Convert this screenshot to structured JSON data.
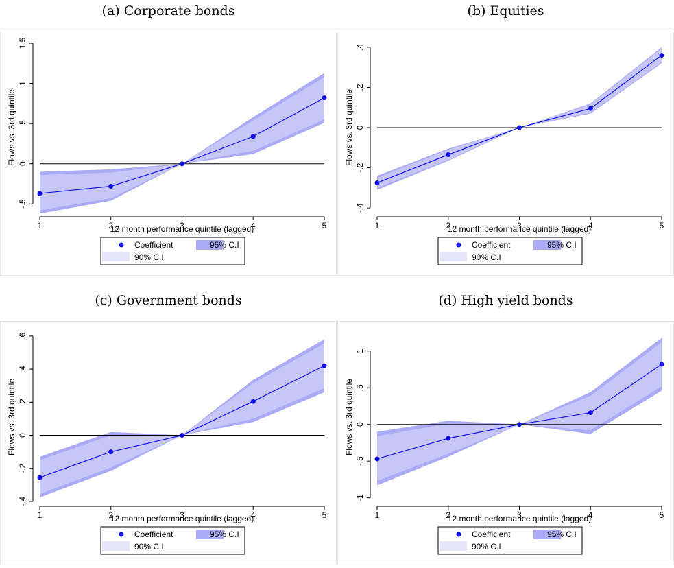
{
  "colors": {
    "line": "#1010e6",
    "ci95": "#aaaaf5",
    "ci90": "#c6c6f8",
    "zero": "#000000",
    "legend_ci90": "#e6e6fb"
  },
  "chart_data": [
    {
      "type": "line",
      "title": "(a) Corporate bonds",
      "xlabel": "12 month performance quintile (lagged)",
      "ylabel": "Flows vs. 3rd quintile",
      "x": [
        1,
        2,
        3,
        4,
        5
      ],
      "xticks": [
        "1",
        "2",
        "3",
        "4",
        "5"
      ],
      "yticks": [
        -0.5,
        0,
        0.5,
        1,
        1.5
      ],
      "ytick_labels": [
        "-.5",
        "0",
        ".5",
        "1",
        "1.5"
      ],
      "ylim": [
        -0.6,
        1.5
      ],
      "series": [
        {
          "name": "Coefficient",
          "values": [
            -0.37,
            -0.28,
            0.0,
            0.34,
            0.82
          ]
        },
        {
          "name": "95% C.I",
          "lower": [
            -0.62,
            -0.46,
            0.0,
            0.12,
            0.51
          ],
          "upper": [
            -0.1,
            -0.07,
            0.0,
            0.58,
            1.13
          ]
        },
        {
          "name": "90% C.I",
          "lower": [
            -0.58,
            -0.43,
            0.0,
            0.16,
            0.55
          ],
          "upper": [
            -0.14,
            -0.11,
            0.0,
            0.54,
            1.08
          ]
        }
      ],
      "legend": [
        "Coefficient",
        "95% C.I",
        "90% C.I"
      ],
      "grid": false,
      "legend_position": "bottom"
    },
    {
      "type": "line",
      "title": "(b) Equities",
      "xlabel": "12 month performance quintile (lagged)",
      "ylabel": "Flows vs. 3rd quintile",
      "x": [
        1,
        2,
        3,
        4,
        5
      ],
      "xticks": [
        "1",
        "2",
        "3",
        "4",
        "5"
      ],
      "yticks": [
        -0.4,
        -0.2,
        0,
        0.2,
        0.4
      ],
      "ytick_labels": [
        "-.4",
        "-.2",
        "0",
        ".2",
        ".4"
      ],
      "ylim": [
        -0.42,
        0.42
      ],
      "series": [
        {
          "name": "Coefficient",
          "values": [
            -0.275,
            -0.135,
            0.0,
            0.095,
            0.36
          ]
        },
        {
          "name": "95% C.I",
          "lower": [
            -0.31,
            -0.165,
            0.0,
            0.07,
            0.32
          ],
          "upper": [
            -0.24,
            -0.105,
            0.0,
            0.12,
            0.4
          ]
        },
        {
          "name": "90% C.I",
          "lower": [
            -0.3,
            -0.16,
            0.0,
            0.075,
            0.325
          ],
          "upper": [
            -0.25,
            -0.11,
            0.0,
            0.115,
            0.395
          ]
        }
      ],
      "legend": [
        "Coefficient",
        "95% C.I",
        "90% C.I"
      ],
      "grid": false,
      "legend_position": "bottom"
    },
    {
      "type": "line",
      "title": "(c) Government bonds",
      "xlabel": "12 month performance quintile (lagged)",
      "ylabel": "Flows vs. 3rd quintile",
      "x": [
        1,
        2,
        3,
        4,
        5
      ],
      "xticks": [
        "1",
        "2",
        "3",
        "4",
        "5"
      ],
      "yticks": [
        -0.4,
        -0.2,
        0,
        0.2,
        0.4,
        0.6
      ],
      "ytick_labels": [
        "-.4",
        "-.2",
        "0",
        ".2",
        ".4",
        ".6"
      ],
      "ylim": [
        -0.4,
        0.62
      ],
      "series": [
        {
          "name": "Coefficient",
          "values": [
            -0.255,
            -0.1,
            0.0,
            0.205,
            0.42
          ]
        },
        {
          "name": "95% C.I",
          "lower": [
            -0.375,
            -0.215,
            0.0,
            0.08,
            0.26
          ],
          "upper": [
            -0.13,
            0.02,
            0.0,
            0.335,
            0.58
          ]
        },
        {
          "name": "90% C.I",
          "lower": [
            -0.355,
            -0.195,
            0.0,
            0.1,
            0.285
          ],
          "upper": [
            -0.15,
            0.0,
            0.0,
            0.315,
            0.555
          ]
        }
      ],
      "legend": [
        "Coefficient",
        "95% C.I",
        "90% C.I"
      ],
      "grid": false,
      "legend_position": "bottom"
    },
    {
      "type": "line",
      "title": "(d) High yield bonds",
      "xlabel": "12 month performance quintile (lagged)",
      "ylabel": "Flows vs. 3rd quintile",
      "x": [
        1,
        2,
        3,
        4,
        5
      ],
      "xticks": [
        "1",
        "2",
        "3",
        "4",
        "5"
      ],
      "yticks": [
        -1,
        -0.5,
        0,
        0.5,
        1
      ],
      "ytick_labels": [
        "-1",
        "-.5",
        "0",
        ".5",
        "1"
      ],
      "ylim": [
        -1.05,
        1.25
      ],
      "series": [
        {
          "name": "Coefficient",
          "values": [
            -0.47,
            -0.19,
            0.0,
            0.16,
            0.82
          ]
        },
        {
          "name": "95% C.I",
          "lower": [
            -0.83,
            -0.44,
            0.0,
            -0.13,
            0.46
          ],
          "upper": [
            -0.1,
            0.05,
            0.0,
            0.44,
            1.18
          ]
        },
        {
          "name": "90% C.I",
          "lower": [
            -0.77,
            -0.4,
            0.0,
            -0.08,
            0.52
          ],
          "upper": [
            -0.16,
            0.01,
            0.0,
            0.39,
            1.12
          ]
        }
      ],
      "legend": [
        "Coefficient",
        "95% C.I",
        "90% C.I"
      ],
      "grid": false,
      "legend_position": "bottom"
    }
  ]
}
